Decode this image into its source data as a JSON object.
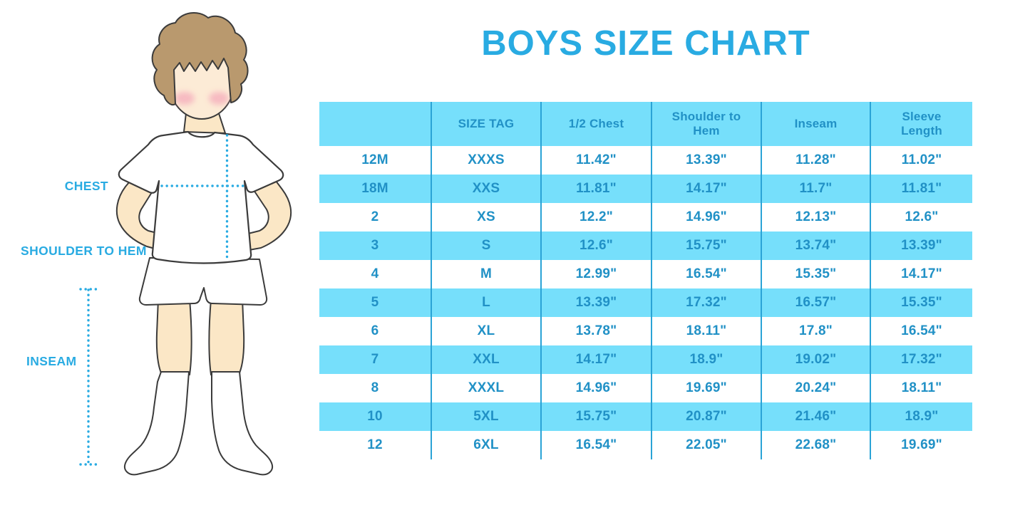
{
  "title": "BOYS SIZE CHART",
  "colors": {
    "accent": "#29ABE2",
    "band": "#76DFFB",
    "table_text": "#2191C6",
    "divider": "#2AA3D6",
    "skin": "#FBE7C6",
    "hair": "#B9996E",
    "blush": "#F5AEBC",
    "outline": "#3B3B3B"
  },
  "figure_labels": {
    "chest": "CHEST",
    "shoulder_to_hem": "SHOULDER TO HEM",
    "inseam": "INSEAM"
  },
  "chart_data": {
    "type": "table",
    "title": "BOYS SIZE CHART",
    "columns": [
      "",
      "SIZE TAG",
      "1/2 Chest",
      "Shoulder to Hem",
      "Inseam",
      "Sleeve Length"
    ],
    "rows": [
      [
        "12M",
        "XXXS",
        "11.42\"",
        "13.39\"",
        "11.28\"",
        "11.02\""
      ],
      [
        "18M",
        "XXS",
        "11.81\"",
        "14.17\"",
        "11.7\"",
        "11.81\""
      ],
      [
        "2",
        "XS",
        "12.2\"",
        "14.96\"",
        "12.13\"",
        "12.6\""
      ],
      [
        "3",
        "S",
        "12.6\"",
        "15.75\"",
        "13.74\"",
        "13.39\""
      ],
      [
        "4",
        "M",
        "12.99\"",
        "16.54\"",
        "15.35\"",
        "14.17\""
      ],
      [
        "5",
        "L",
        "13.39\"",
        "17.32\"",
        "16.57\"",
        "15.35\""
      ],
      [
        "6",
        "XL",
        "13.78\"",
        "18.11\"",
        "17.8\"",
        "16.54\""
      ],
      [
        "7",
        "XXL",
        "14.17\"",
        "18.9\"",
        "19.02\"",
        "17.32\""
      ],
      [
        "8",
        "XXXL",
        "14.96\"",
        "19.69\"",
        "20.24\"",
        "18.11\""
      ],
      [
        "10",
        "5XL",
        "15.75\"",
        "20.87\"",
        "21.46\"",
        "18.9\""
      ],
      [
        "12",
        "6XL",
        "16.54\"",
        "22.05\"",
        "22.68\"",
        "19.69\""
      ]
    ],
    "layout": {
      "header_banded": true,
      "alternating_row_bands": "rows 18M, 3, 5, 7, 10 banded",
      "grid": "vertical column dividers only, no horizontal lines"
    }
  }
}
